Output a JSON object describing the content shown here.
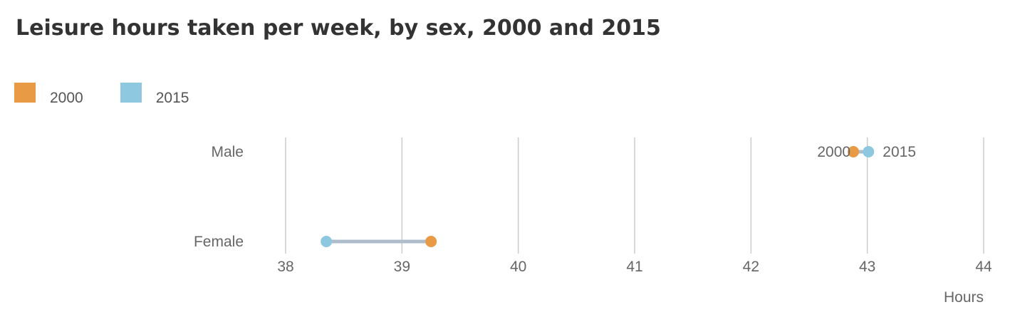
{
  "chart_data": {
    "type": "dumbbell",
    "title": "Leisure hours taken per week, by sex, 2000 and 2015",
    "xlabel": "Hours",
    "ylabel": "",
    "xlim": [
      38,
      44
    ],
    "xticks": [
      "38",
      "39",
      "40",
      "41",
      "42",
      "43",
      "44"
    ],
    "grid": true,
    "legend_position": "top-left",
    "categories": [
      "Male",
      "Female"
    ],
    "series": [
      {
        "name": "2000",
        "color": "#e99a45",
        "values": [
          42.88,
          39.25
        ]
      },
      {
        "name": "2015",
        "color": "#8ec8e0",
        "values": [
          43.01,
          38.35
        ]
      }
    ],
    "connector_color": "#aebccc",
    "annotations": [
      {
        "category": "Male",
        "series": "2000",
        "text": "2000"
      },
      {
        "category": "Male",
        "series": "2015",
        "text": "2015"
      }
    ]
  }
}
